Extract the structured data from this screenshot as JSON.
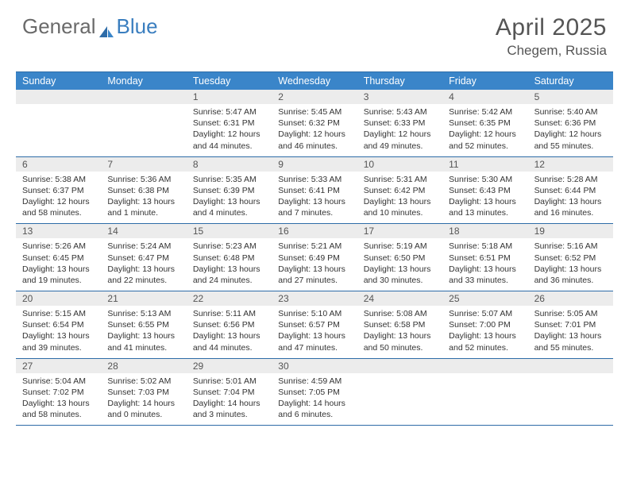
{
  "brand": {
    "general": "General",
    "blue": "Blue"
  },
  "colors": {
    "header_bar": "#3a85c9",
    "border": "#2e6ca8",
    "daynum_bg": "#ececec",
    "brand_gray": "#6a6a6a",
    "brand_blue": "#3a7ebf",
    "text": "#333333",
    "title": "#555555"
  },
  "title": "April 2025",
  "location": "Chegem, Russia",
  "weekdays": [
    "Sunday",
    "Monday",
    "Tuesday",
    "Wednesday",
    "Thursday",
    "Friday",
    "Saturday"
  ],
  "weeks": [
    [
      null,
      null,
      {
        "n": "1",
        "sr": "5:47 AM",
        "ss": "6:31 PM",
        "dl": "12 hours and 44 minutes."
      },
      {
        "n": "2",
        "sr": "5:45 AM",
        "ss": "6:32 PM",
        "dl": "12 hours and 46 minutes."
      },
      {
        "n": "3",
        "sr": "5:43 AM",
        "ss": "6:33 PM",
        "dl": "12 hours and 49 minutes."
      },
      {
        "n": "4",
        "sr": "5:42 AM",
        "ss": "6:35 PM",
        "dl": "12 hours and 52 minutes."
      },
      {
        "n": "5",
        "sr": "5:40 AM",
        "ss": "6:36 PM",
        "dl": "12 hours and 55 minutes."
      }
    ],
    [
      {
        "n": "6",
        "sr": "5:38 AM",
        "ss": "6:37 PM",
        "dl": "12 hours and 58 minutes."
      },
      {
        "n": "7",
        "sr": "5:36 AM",
        "ss": "6:38 PM",
        "dl": "13 hours and 1 minute."
      },
      {
        "n": "8",
        "sr": "5:35 AM",
        "ss": "6:39 PM",
        "dl": "13 hours and 4 minutes."
      },
      {
        "n": "9",
        "sr": "5:33 AM",
        "ss": "6:41 PM",
        "dl": "13 hours and 7 minutes."
      },
      {
        "n": "10",
        "sr": "5:31 AM",
        "ss": "6:42 PM",
        "dl": "13 hours and 10 minutes."
      },
      {
        "n": "11",
        "sr": "5:30 AM",
        "ss": "6:43 PM",
        "dl": "13 hours and 13 minutes."
      },
      {
        "n": "12",
        "sr": "5:28 AM",
        "ss": "6:44 PM",
        "dl": "13 hours and 16 minutes."
      }
    ],
    [
      {
        "n": "13",
        "sr": "5:26 AM",
        "ss": "6:45 PM",
        "dl": "13 hours and 19 minutes."
      },
      {
        "n": "14",
        "sr": "5:24 AM",
        "ss": "6:47 PM",
        "dl": "13 hours and 22 minutes."
      },
      {
        "n": "15",
        "sr": "5:23 AM",
        "ss": "6:48 PM",
        "dl": "13 hours and 24 minutes."
      },
      {
        "n": "16",
        "sr": "5:21 AM",
        "ss": "6:49 PM",
        "dl": "13 hours and 27 minutes."
      },
      {
        "n": "17",
        "sr": "5:19 AM",
        "ss": "6:50 PM",
        "dl": "13 hours and 30 minutes."
      },
      {
        "n": "18",
        "sr": "5:18 AM",
        "ss": "6:51 PM",
        "dl": "13 hours and 33 minutes."
      },
      {
        "n": "19",
        "sr": "5:16 AM",
        "ss": "6:52 PM",
        "dl": "13 hours and 36 minutes."
      }
    ],
    [
      {
        "n": "20",
        "sr": "5:15 AM",
        "ss": "6:54 PM",
        "dl": "13 hours and 39 minutes."
      },
      {
        "n": "21",
        "sr": "5:13 AM",
        "ss": "6:55 PM",
        "dl": "13 hours and 41 minutes."
      },
      {
        "n": "22",
        "sr": "5:11 AM",
        "ss": "6:56 PM",
        "dl": "13 hours and 44 minutes."
      },
      {
        "n": "23",
        "sr": "5:10 AM",
        "ss": "6:57 PM",
        "dl": "13 hours and 47 minutes."
      },
      {
        "n": "24",
        "sr": "5:08 AM",
        "ss": "6:58 PM",
        "dl": "13 hours and 50 minutes."
      },
      {
        "n": "25",
        "sr": "5:07 AM",
        "ss": "7:00 PM",
        "dl": "13 hours and 52 minutes."
      },
      {
        "n": "26",
        "sr": "5:05 AM",
        "ss": "7:01 PM",
        "dl": "13 hours and 55 minutes."
      }
    ],
    [
      {
        "n": "27",
        "sr": "5:04 AM",
        "ss": "7:02 PM",
        "dl": "13 hours and 58 minutes."
      },
      {
        "n": "28",
        "sr": "5:02 AM",
        "ss": "7:03 PM",
        "dl": "14 hours and 0 minutes."
      },
      {
        "n": "29",
        "sr": "5:01 AM",
        "ss": "7:04 PM",
        "dl": "14 hours and 3 minutes."
      },
      {
        "n": "30",
        "sr": "4:59 AM",
        "ss": "7:05 PM",
        "dl": "14 hours and 6 minutes."
      },
      null,
      null,
      null
    ]
  ],
  "labels": {
    "sunrise": "Sunrise: ",
    "sunset": "Sunset: ",
    "daylight": "Daylight: "
  }
}
